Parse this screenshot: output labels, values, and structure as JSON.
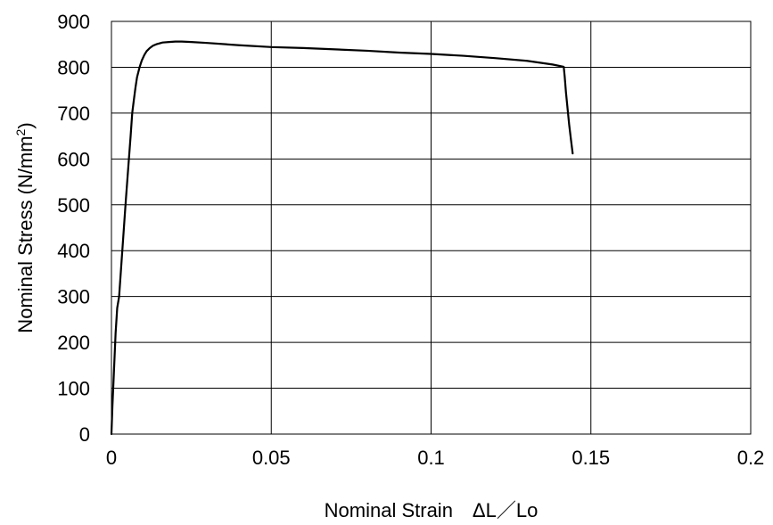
{
  "chart_data": {
    "type": "line",
    "title": "",
    "xlabel": "Nominal Strain　ΔL／Lo",
    "ylabel": {
      "text": "Nominal Stress (N/mm",
      "superscript": "2",
      "close": ")"
    },
    "xlim": [
      0,
      0.2
    ],
    "ylim": [
      0,
      900
    ],
    "xticks": [
      {
        "value": 0,
        "label": "0"
      },
      {
        "value": 0.05,
        "label": "0.05"
      },
      {
        "value": 0.1,
        "label": "0.1"
      },
      {
        "value": 0.15,
        "label": "0.15"
      },
      {
        "value": 0.2,
        "label": "0.2"
      }
    ],
    "yticks": [
      {
        "value": 0,
        "label": "0"
      },
      {
        "value": 100,
        "label": "100"
      },
      {
        "value": 200,
        "label": "200"
      },
      {
        "value": 300,
        "label": "300"
      },
      {
        "value": 400,
        "label": "400"
      },
      {
        "value": 500,
        "label": "500"
      },
      {
        "value": 600,
        "label": "600"
      },
      {
        "value": 700,
        "label": "700"
      },
      {
        "value": 800,
        "label": "800"
      },
      {
        "value": 900,
        "label": "900"
      }
    ],
    "grid": true,
    "legend": "none",
    "line_color": "#000000",
    "series": [
      {
        "x": [
          0,
          0.0003,
          0.0008,
          0.0013,
          0.0018,
          0.0024,
          0.003,
          0.0037,
          0.0045,
          0.0053,
          0.006,
          0.0065,
          0.007,
          0.0075,
          0.008,
          0.0088,
          0.0095,
          0.0103,
          0.011,
          0.012,
          0.013,
          0.014,
          0.015,
          0.016,
          0.018,
          0.02,
          0.022,
          0.025,
          0.03,
          0.04,
          0.05,
          0.06,
          0.07,
          0.08,
          0.09,
          0.1,
          0.11,
          0.12,
          0.13,
          0.138,
          0.1415,
          0.1418,
          0.1422,
          0.1427,
          0.1432,
          0.1438,
          0.1443
        ],
        "y": [
          0,
          60,
          140,
          220,
          275,
          300,
          360,
          430,
          510,
          585,
          650,
          700,
          728,
          755,
          778,
          800,
          815,
          827,
          835,
          842,
          847,
          850,
          852,
          854,
          855,
          856,
          856,
          855,
          853,
          848,
          844,
          842,
          839,
          836,
          832,
          829,
          825,
          820,
          814,
          806,
          801,
          780,
          745,
          710,
          675,
          640,
          612
        ]
      }
    ]
  }
}
